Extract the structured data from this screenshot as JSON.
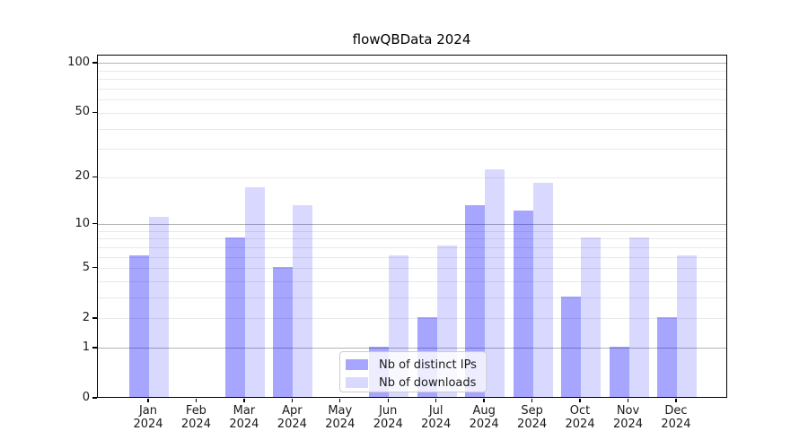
{
  "chart_data": {
    "type": "bar",
    "title": "flowQBData 2024",
    "x": {
      "months": [
        "Jan",
        "Feb",
        "Mar",
        "Apr",
        "May",
        "Jun",
        "Jul",
        "Aug",
        "Sep",
        "Oct",
        "Nov",
        "Dec"
      ],
      "year": "2024"
    },
    "y": {
      "scale": "log10(1+x)",
      "tick_labels": [
        0,
        1,
        2,
        5,
        10,
        20,
        50,
        100
      ],
      "dark_gridlines": [
        1,
        10,
        100
      ],
      "light_gridlines": [
        2,
        3,
        4,
        5,
        6,
        7,
        8,
        9,
        20,
        30,
        40,
        50,
        60,
        70,
        80,
        90
      ],
      "ylim": [
        0,
        113
      ],
      "grid": true
    },
    "series": [
      {
        "name": "Nb of distinct IPs",
        "color": "rgba(0,0,255,0.35)",
        "values": [
          6,
          0,
          8,
          5,
          0,
          1,
          2,
          13,
          12,
          3,
          1,
          2
        ]
      },
      {
        "name": "Nb of downloads",
        "color": "rgba(0,0,255,0.15)",
        "values": [
          11,
          0,
          17,
          13,
          0,
          6,
          7,
          22,
          18,
          8,
          8,
          6
        ]
      }
    ],
    "legend": {
      "position": "lower center"
    }
  },
  "colors": {
    "background": "#ffffff",
    "spine": "#000000",
    "dark_grid": "#b3b3b3",
    "light_grid": "#e9e9e9",
    "text": "#1a1a1a",
    "legend_border": "#cccccc"
  }
}
